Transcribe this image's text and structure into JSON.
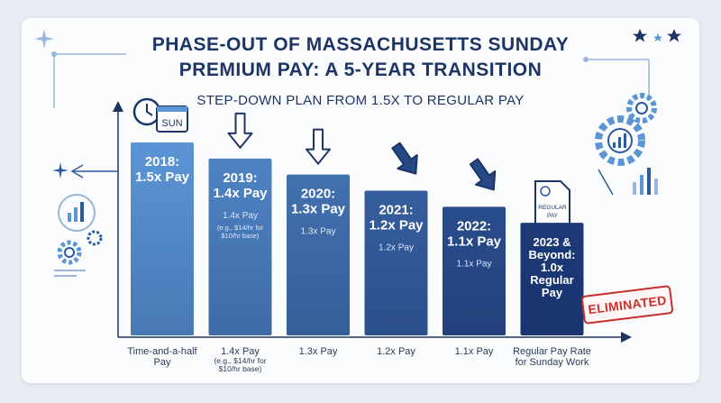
{
  "title_line1": "PHASE-OUT OF MASSACHUSETTS SUNDAY",
  "title_line2": "PREMIUM PAY: A 5-YEAR TRANSITION",
  "subtitle": "STEP-DOWN PLAN FROM 1.5X TO REGULAR PAY",
  "icons": {
    "calendar_label": "SUN",
    "document_label_1": "REGULAR",
    "document_label_2": "PAY"
  },
  "stamp": "ELIMINATED",
  "colors": {
    "bar_light": "#5b95d6",
    "bar_dark": "#1c3a78",
    "title": "#1d3566",
    "stamp": "#c8302b"
  },
  "chart_data": {
    "type": "bar",
    "categories": [
      "2018",
      "2019",
      "2020",
      "2021",
      "2022",
      "2023 & Beyond"
    ],
    "values": [
      1.5,
      1.4,
      1.3,
      1.2,
      1.1,
      1.0
    ],
    "bar_titles": [
      [
        "2018:",
        "1.5x Pay"
      ],
      [
        "2019:",
        "1.4x Pay"
      ],
      [
        "2020:",
        "1.3x Pay"
      ],
      [
        "2021:",
        "1.2x Pay"
      ],
      [
        "2022:",
        "1.1x Pay"
      ],
      [
        "2023 &",
        "Beyond:",
        "1.0x",
        "Regular",
        "Pay"
      ]
    ],
    "bar_sublabels": [
      [],
      [
        "1.4x Pay",
        "(e.g., $14/hr for",
        "$10/hr base)"
      ],
      [
        "1.3x Pay"
      ],
      [
        "1.2x Pay"
      ],
      [
        "1.1x Pay"
      ],
      []
    ],
    "axis_labels": [
      {
        "main": [
          "Time-and-a-half",
          "Pay"
        ],
        "sub": []
      },
      {
        "main": [
          "1.4x Pay"
        ],
        "sub": [
          "(e.g., $14/hr for",
          "$10/hr base)"
        ]
      },
      {
        "main": [
          "1.3x Pay"
        ],
        "sub": []
      },
      {
        "main": [
          "1.2x Pay"
        ],
        "sub": []
      },
      {
        "main": [
          "1.1x Pay"
        ],
        "sub": []
      },
      {
        "main": [
          "Regular Pay Rate",
          "for Sunday Work"
        ],
        "sub": []
      }
    ],
    "annotations": [
      "ELIMINATED"
    ],
    "ylim": [
      0.3,
      1.5
    ],
    "grid": false,
    "legend": "none"
  }
}
